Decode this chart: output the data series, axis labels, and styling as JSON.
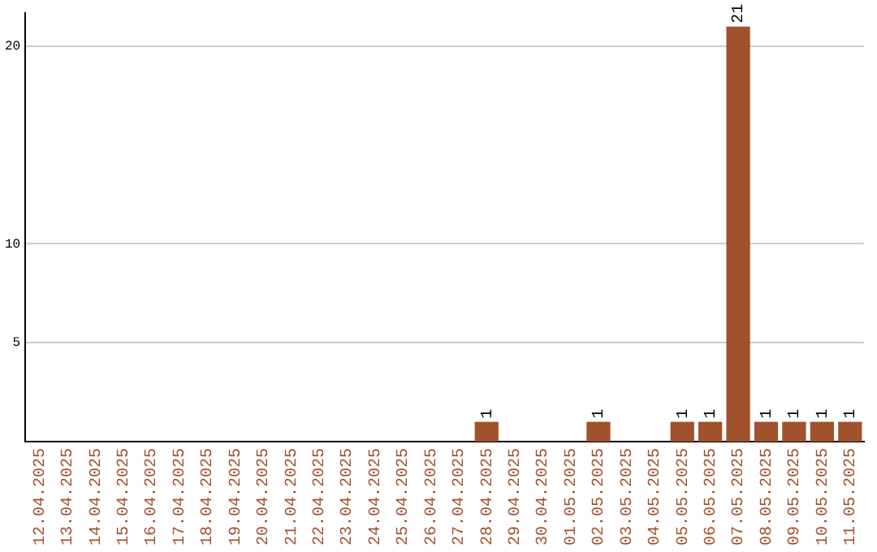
{
  "chart_data": {
    "type": "bar",
    "categories": [
      "12.04.2025",
      "13.04.2025",
      "14.04.2025",
      "15.04.2025",
      "16.04.2025",
      "17.04.2025",
      "18.04.2025",
      "19.04.2025",
      "20.04.2025",
      "21.04.2025",
      "22.04.2025",
      "23.04.2025",
      "24.04.2025",
      "25.04.2025",
      "26.04.2025",
      "27.04.2025",
      "28.04.2025",
      "29.04.2025",
      "30.04.2025",
      "01.05.2025",
      "02.05.2025",
      "03.05.2025",
      "04.05.2025",
      "05.05.2025",
      "06.05.2025",
      "07.05.2025",
      "08.05.2025",
      "09.05.2025",
      "10.05.2025",
      "11.05.2025"
    ],
    "values": [
      null,
      null,
      null,
      null,
      null,
      null,
      null,
      null,
      null,
      null,
      null,
      null,
      null,
      null,
      null,
      null,
      1,
      null,
      null,
      null,
      1,
      null,
      null,
      1,
      1,
      21,
      1,
      1,
      1,
      1
    ],
    "color": "#a0522d",
    "ylim": [
      0,
      21.7
    ],
    "yticks": [
      5,
      10,
      20
    ],
    "grid": "y",
    "data_labels": true
  }
}
